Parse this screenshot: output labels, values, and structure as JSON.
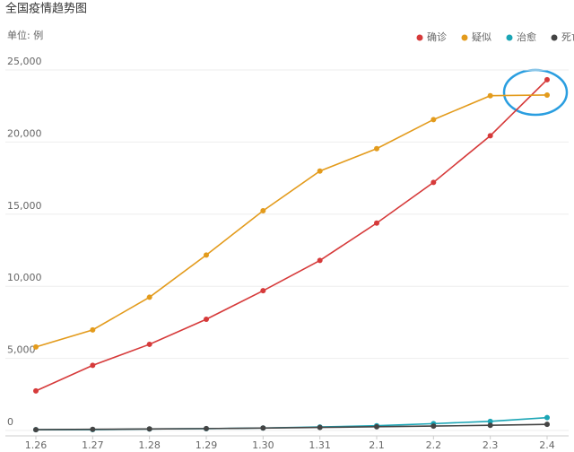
{
  "chart_data": {
    "type": "line",
    "title": "全国疫情趋势图",
    "y_label": "单位: 例",
    "categories": [
      "1.26",
      "1.27",
      "1.28",
      "1.29",
      "1.30",
      "1.31",
      "2.1",
      "2.2",
      "2.3",
      "2.4"
    ],
    "series": [
      {
        "name": "确诊",
        "color": "#d63a3a",
        "values": [
          2744,
          4515,
          5974,
          7711,
          9692,
          11791,
          14380,
          17205,
          20438,
          24324
        ]
      },
      {
        "name": "疑似",
        "color": "#e39b1c",
        "values": [
          5794,
          6973,
          9239,
          12167,
          15238,
          17988,
          19544,
          21558,
          23214,
          23260
        ]
      },
      {
        "name": "治愈",
        "color": "#1ba5b5",
        "values": [
          51,
          60,
          103,
          124,
          171,
          243,
          328,
          475,
          632,
          892
        ]
      },
      {
        "name": "死亡",
        "color": "#444444",
        "values": [
          56,
          80,
          106,
          132,
          170,
          213,
          259,
          304,
          361,
          425
        ]
      }
    ],
    "ylim": [
      0,
      25000
    ],
    "yticks": [
      0,
      {
        "value": 5000,
        "label": "5,000"
      },
      {
        "value": 10000,
        "label": "10,000"
      },
      {
        "value": 15000,
        "label": "15,000"
      },
      {
        "value": 20000,
        "label": "20,000"
      },
      {
        "value": 25000,
        "label": "25,000"
      }
    ],
    "grid": true,
    "legend": "top-right"
  }
}
